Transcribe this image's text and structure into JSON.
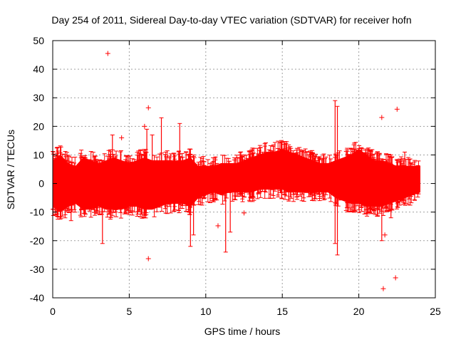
{
  "chart_data": {
    "type": "scatter",
    "title": "Day 254 of 2011, Sidereal Day-to-day VTEC variation (SDTVAR) for receiver hofn",
    "xlabel": "GPS time / hours",
    "ylabel": "SDTVAR / TECUs",
    "xlim": [
      0,
      25
    ],
    "ylim": [
      -40,
      50
    ],
    "xticks": [
      "0",
      "5",
      "10",
      "15",
      "20",
      "25"
    ],
    "yticks": [
      "-40",
      "-30",
      "-20",
      "-10",
      "0",
      "10",
      "20",
      "30",
      "40",
      "50"
    ],
    "grid": true,
    "marker": "+",
    "color": "#ff0000",
    "envelope": {
      "x": [
        0,
        0.5,
        1,
        1.5,
        2,
        2.5,
        3,
        3.5,
        4,
        4.5,
        5,
        5.5,
        6,
        6.5,
        7,
        7.5,
        8,
        8.5,
        9,
        9.5,
        10,
        10.5,
        11,
        11.5,
        12,
        12.5,
        13,
        13.5,
        14,
        14.5,
        15,
        15.5,
        16,
        16.5,
        17,
        17.5,
        18,
        18.5,
        19,
        19.5,
        20,
        20.5,
        21,
        21.5,
        22,
        22.5,
        23,
        23.5,
        24
      ],
      "upper": [
        8,
        10,
        7,
        6,
        9,
        8,
        7,
        8,
        9,
        8,
        7,
        8,
        9,
        8,
        8,
        8,
        8,
        8,
        9,
        6,
        6,
        6,
        7,
        7,
        7,
        8,
        9,
        10,
        11,
        11,
        12,
        11,
        10,
        9,
        8,
        7,
        7,
        8,
        9,
        10,
        12,
        10,
        8,
        8,
        7,
        6,
        6,
        6,
        6
      ],
      "lower": [
        -8,
        -10,
        -8,
        -7,
        -9,
        -9,
        -8,
        -9,
        -9,
        -9,
        -8,
        -8,
        -9,
        -9,
        -8,
        -7,
        -7,
        -7,
        -8,
        -5,
        -4,
        -3,
        -4,
        -3,
        -3,
        -3,
        -3,
        -2,
        -2,
        -2,
        -2,
        -3,
        -3,
        -3,
        -3,
        -3,
        -3,
        -5,
        -6,
        -7,
        -7,
        -8,
        -8,
        -8,
        -7,
        -6,
        -5,
        -4,
        -3
      ]
    },
    "spikes": [
      {
        "x": 1.2,
        "y0": -13,
        "y1": 6
      },
      {
        "x": 3.25,
        "y0": -21,
        "y1": 7
      },
      {
        "x": 3.9,
        "y0": 0,
        "y1": 17
      },
      {
        "x": 6.15,
        "y0": -5,
        "y1": 19
      },
      {
        "x": 6.5,
        "y0": -5,
        "y1": 17
      },
      {
        "x": 7.1,
        "y0": 0,
        "y1": 23
      },
      {
        "x": 8.3,
        "y0": -5,
        "y1": 21
      },
      {
        "x": 9.0,
        "y0": -22,
        "y1": 12
      },
      {
        "x": 9.2,
        "y0": -18,
        "y1": 10
      },
      {
        "x": 11.3,
        "y0": -24,
        "y1": 5
      },
      {
        "x": 11.6,
        "y0": -17,
        "y1": 6
      },
      {
        "x": 18.45,
        "y0": -21,
        "y1": 29
      },
      {
        "x": 18.6,
        "y0": -25,
        "y1": 27
      },
      {
        "x": 21.5,
        "y0": -20,
        "y1": 5
      },
      {
        "x": 22.1,
        "y0": -12,
        "y1": 10
      },
      {
        "x": 23.0,
        "y0": -4,
        "y1": 11
      }
    ],
    "outliers": [
      {
        "x": 3.6,
        "y": 45.5
      },
      {
        "x": 6.25,
        "y": 26.5
      },
      {
        "x": 6.25,
        "y": -26.3
      },
      {
        "x": 6.0,
        "y": 20
      },
      {
        "x": 21.5,
        "y": 23.1
      },
      {
        "x": 22.5,
        "y": 26
      },
      {
        "x": 21.6,
        "y": -36.8
      },
      {
        "x": 22.4,
        "y": -33.0
      },
      {
        "x": 21.7,
        "y": -18
      },
      {
        "x": 10.8,
        "y": -14.8
      },
      {
        "x": 12.5,
        "y": -10.3
      },
      {
        "x": 16.8,
        "y": 10
      },
      {
        "x": 4.5,
        "y": 16
      }
    ]
  }
}
